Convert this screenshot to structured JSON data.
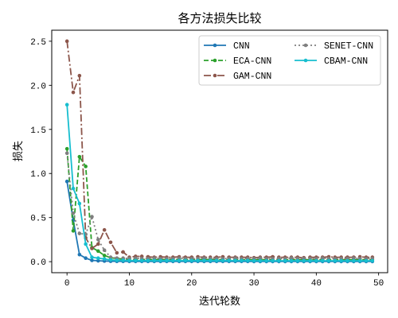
{
  "chart_data": {
    "type": "line",
    "title": "各方法损失比较",
    "xlabel": "迭代轮数",
    "ylabel": "损失",
    "xlim": [
      -2.45,
      51.45
    ],
    "ylim": [
      -0.125,
      2.625
    ],
    "xticks": [
      "0",
      "10",
      "20",
      "30",
      "40",
      "50"
    ],
    "yticks": [
      "0.0",
      "0.5",
      "1.0",
      "1.5",
      "2.0",
      "2.5"
    ],
    "grid": false,
    "legend": "upper right",
    "x": [
      0,
      1,
      2,
      3,
      4,
      5,
      6,
      7,
      8,
      9,
      10,
      11,
      12,
      13,
      14,
      15,
      16,
      17,
      18,
      19,
      20,
      21,
      22,
      23,
      24,
      25,
      26,
      27,
      28,
      29,
      30,
      31,
      32,
      33,
      34,
      35,
      36,
      37,
      38,
      39,
      40,
      41,
      42,
      43,
      44,
      45,
      46,
      47,
      48,
      49
    ],
    "series": [
      {
        "name": "CNN",
        "color": "#1f77b4",
        "linestyle": "solid",
        "marker": "circle",
        "values": [
          0.91,
          0.47,
          0.08,
          0.04,
          0.015,
          0.01,
          0.007,
          0.005,
          0.004,
          0.004,
          0.003,
          0.003,
          0.003,
          0.003,
          0.003,
          0.003,
          0.003,
          0.003,
          0.003,
          0.003,
          0.003,
          0.003,
          0.003,
          0.003,
          0.003,
          0.003,
          0.003,
          0.003,
          0.003,
          0.003,
          0.002,
          0.002,
          0.002,
          0.002,
          0.002,
          0.002,
          0.002,
          0.002,
          0.002,
          0.002,
          0.002,
          0.002,
          0.002,
          0.002,
          0.002,
          0.002,
          0.002,
          0.002,
          0.002,
          0.002
        ]
      },
      {
        "name": "ECA-CNN",
        "color": "#2ca02c",
        "linestyle": "dashed",
        "marker": "circle",
        "values": [
          1.28,
          0.35,
          1.19,
          1.08,
          0.16,
          0.12,
          0.07,
          0.045,
          0.035,
          0.03,
          0.025,
          0.025,
          0.025,
          0.025,
          0.025,
          0.025,
          0.025,
          0.025,
          0.025,
          0.025,
          0.025,
          0.025,
          0.025,
          0.025,
          0.025,
          0.022,
          0.022,
          0.022,
          0.022,
          0.022,
          0.022,
          0.022,
          0.022,
          0.022,
          0.022,
          0.022,
          0.022,
          0.022,
          0.022,
          0.022,
          0.022,
          0.022,
          0.022,
          0.022,
          0.022,
          0.022,
          0.022,
          0.022,
          0.022,
          0.022
        ]
      },
      {
        "name": "GAM-CNN",
        "color": "#8c564b",
        "linestyle": "dashdot",
        "marker": "circle",
        "values": [
          2.5,
          1.92,
          2.11,
          0.27,
          0.15,
          0.2,
          0.36,
          0.22,
          0.1,
          0.11,
          0.05,
          0.06,
          0.06,
          0.055,
          0.05,
          0.055,
          0.05,
          0.05,
          0.055,
          0.05,
          0.05,
          0.055,
          0.05,
          0.05,
          0.05,
          0.055,
          0.05,
          0.05,
          0.05,
          0.05,
          0.045,
          0.05,
          0.05,
          0.055,
          0.05,
          0.05,
          0.05,
          0.05,
          0.045,
          0.05,
          0.05,
          0.05,
          0.055,
          0.05,
          0.05,
          0.05,
          0.05,
          0.055,
          0.05,
          0.05
        ]
      },
      {
        "name": "SENET-CNN",
        "color": "#7f7f7f",
        "linestyle": "dotted",
        "marker": "circle",
        "values": [
          1.23,
          0.55,
          0.32,
          0.31,
          0.51,
          0.25,
          0.13,
          0.05,
          0.04,
          0.04,
          0.035,
          0.04,
          0.035,
          0.035,
          0.04,
          0.035,
          0.035,
          0.035,
          0.04,
          0.035,
          0.035,
          0.035,
          0.04,
          0.035,
          0.035,
          0.035,
          0.035,
          0.04,
          0.035,
          0.035,
          0.035,
          0.04,
          0.035,
          0.035,
          0.035,
          0.035,
          0.04,
          0.035,
          0.035,
          0.035,
          0.035,
          0.04,
          0.035,
          0.035,
          0.035,
          0.035,
          0.04,
          0.035,
          0.035,
          0.035
        ]
      },
      {
        "name": "CBAM-CNN",
        "color": "#17becf",
        "linestyle": "solid",
        "marker": "circle",
        "values": [
          1.78,
          0.83,
          0.66,
          0.2,
          0.05,
          0.04,
          0.03,
          0.02,
          0.015,
          0.015,
          0.012,
          0.012,
          0.012,
          0.012,
          0.012,
          0.012,
          0.012,
          0.012,
          0.012,
          0.012,
          0.012,
          0.012,
          0.012,
          0.012,
          0.012,
          0.012,
          0.012,
          0.012,
          0.012,
          0.012,
          0.01,
          0.01,
          0.01,
          0.01,
          0.01,
          0.01,
          0.01,
          0.01,
          0.01,
          0.01,
          0.01,
          0.01,
          0.01,
          0.01,
          0.01,
          0.01,
          0.01,
          0.01,
          0.01,
          0.01
        ]
      }
    ]
  }
}
